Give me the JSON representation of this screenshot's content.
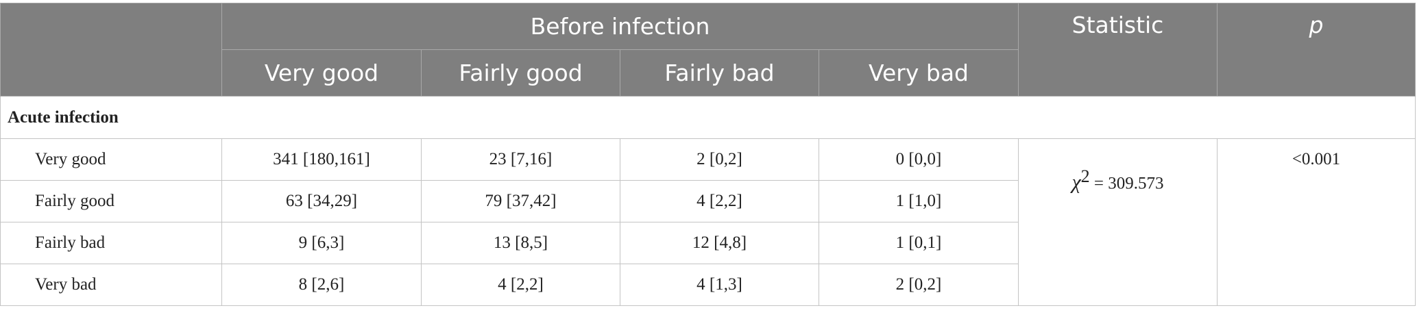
{
  "table": {
    "header": {
      "corner": "",
      "group": "Before infection",
      "statistic": "Statistic",
      "p": "p",
      "columns": [
        "Very good",
        "Fairly good",
        "Fairly bad",
        "Very bad"
      ]
    },
    "section": "Acute infection",
    "rows": [
      [
        "Very good",
        "341 [180,161]",
        "23 [7,16]",
        "2 [0,2]",
        "0 [0,0]"
      ],
      [
        "Fairly good",
        "63 [34,29]",
        "79 [37,42]",
        "4 [2,2]",
        "1 [1,0]"
      ],
      [
        "Fairly bad",
        "9 [6,3]",
        "13 [8,5]",
        "12 [4,8]",
        "1 [0,1]"
      ],
      [
        "Very bad",
        "8 [2,6]",
        "4 [2,2]",
        "4 [1,3]",
        "2 [0,2]"
      ]
    ],
    "statistic": {
      "symbol": "χ",
      "superscript": "2",
      "value": "= 309.573"
    },
    "p_value": "<0.001"
  }
}
